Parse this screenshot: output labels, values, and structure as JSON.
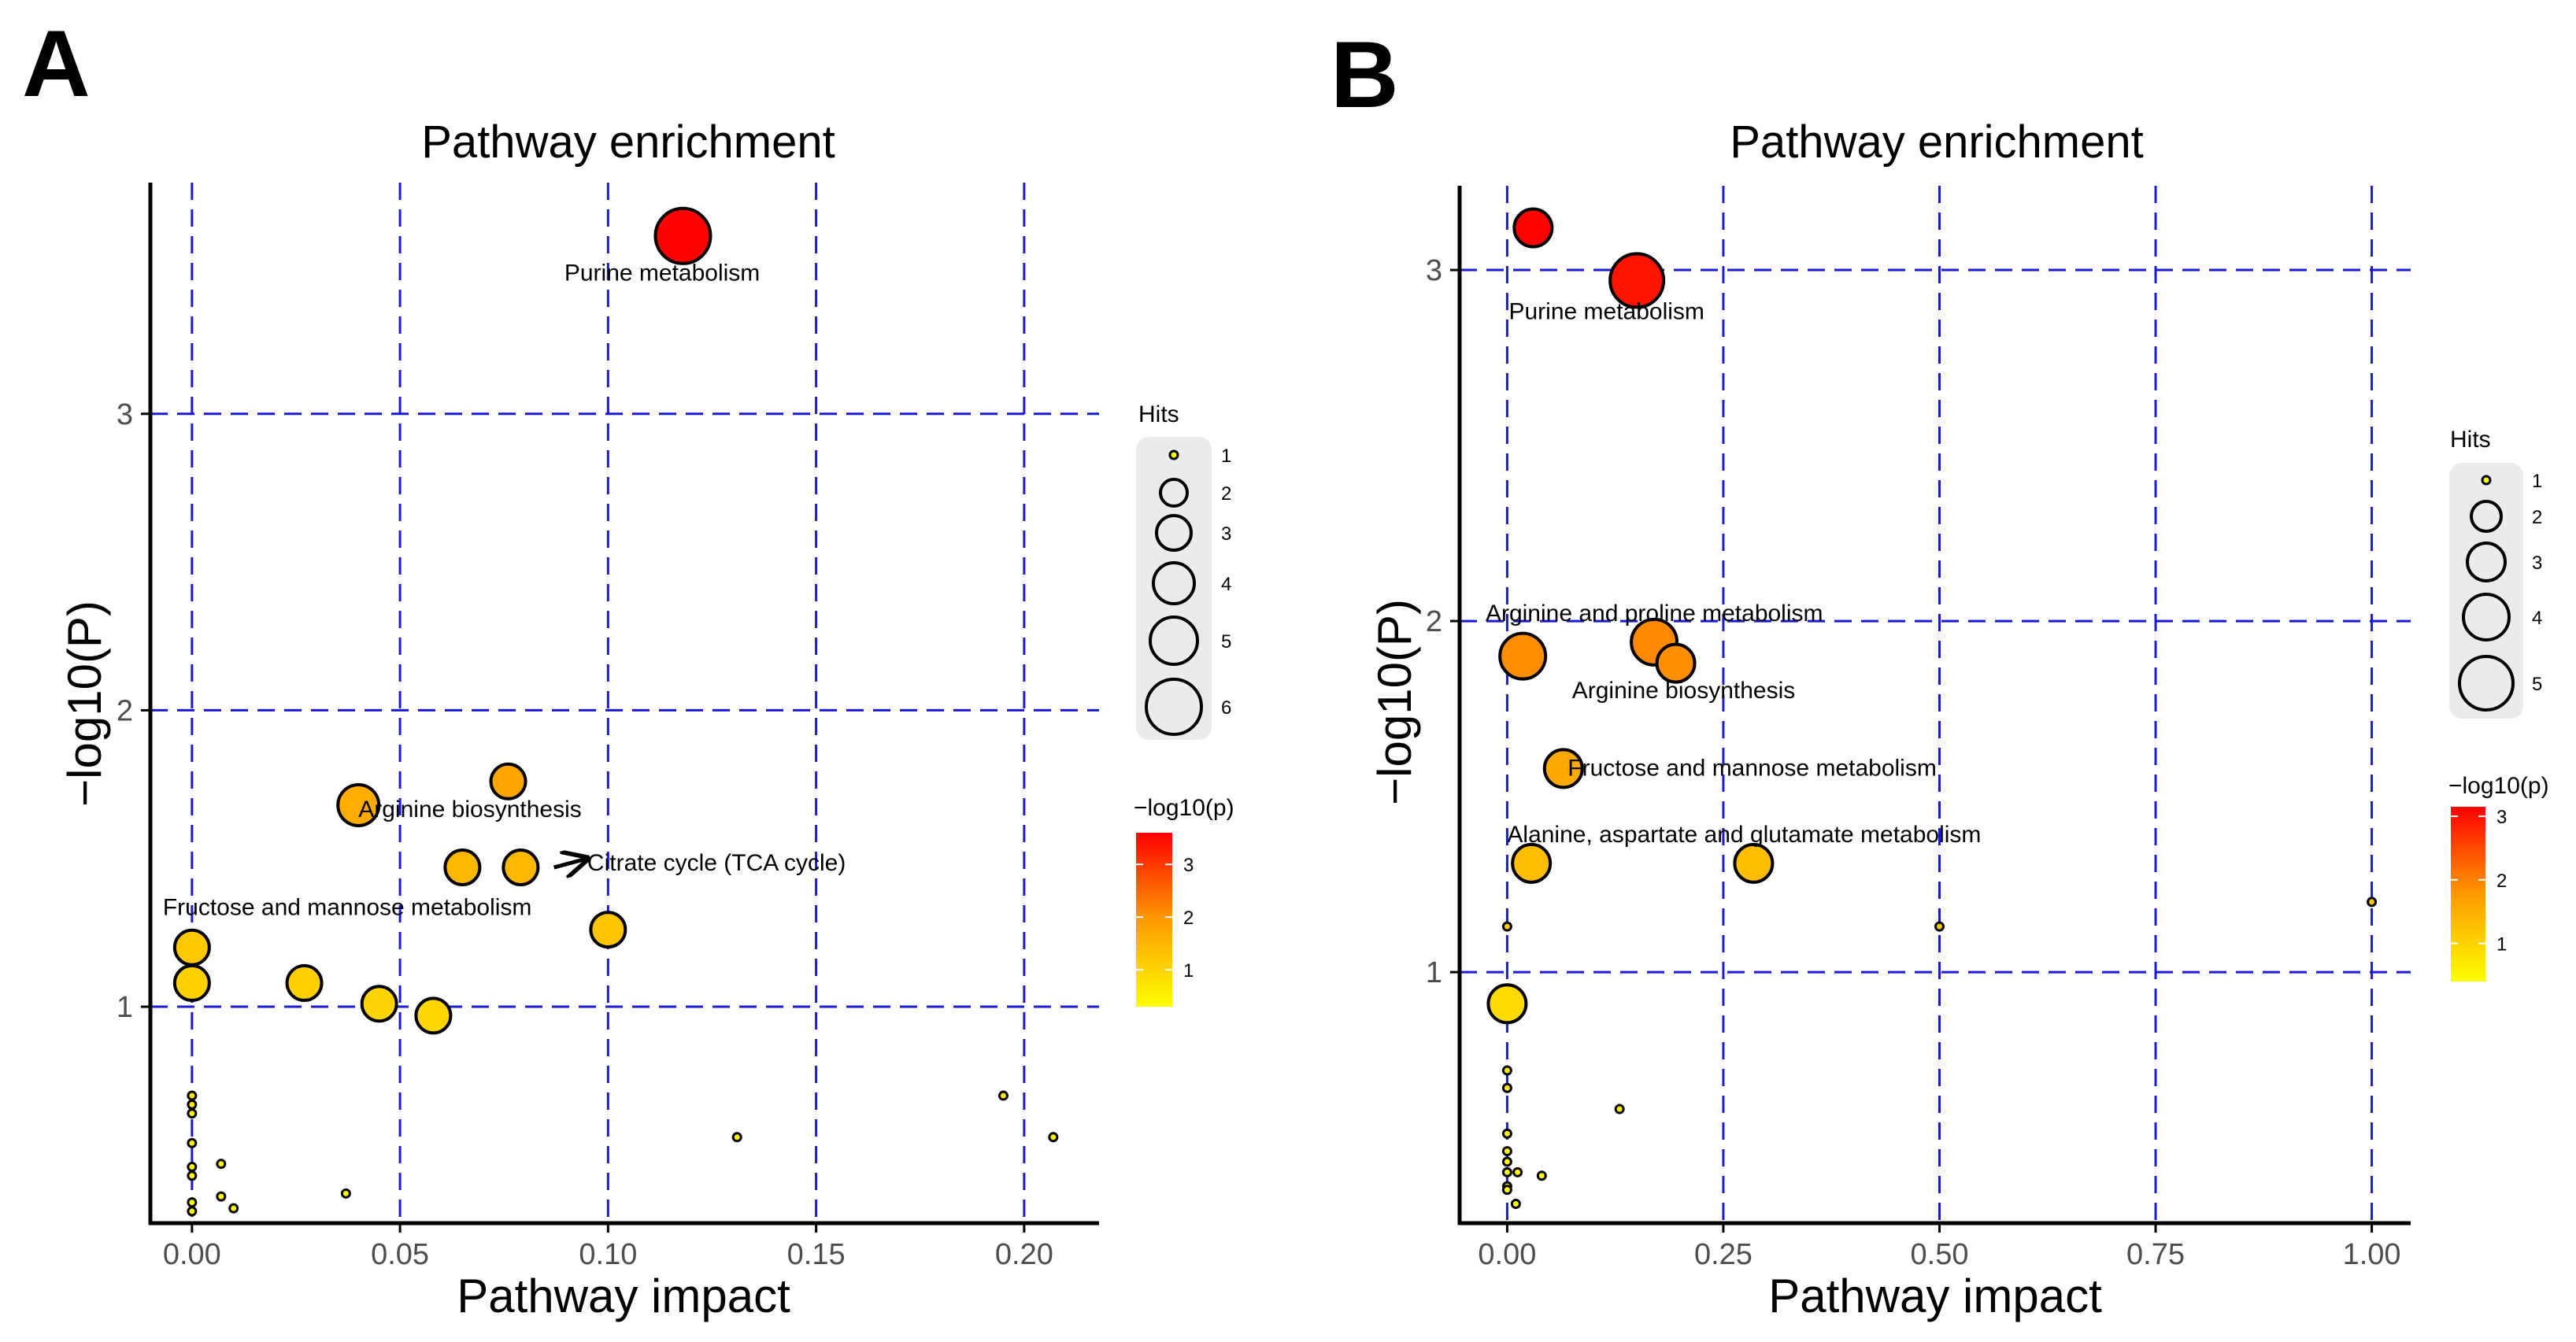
{
  "chart_data": [
    {
      "panel_label": "A",
      "type": "scatter",
      "title": "Pathway enrichment",
      "xlabel": "Pathway impact",
      "ylabel": "−log10(P)",
      "xlim": [
        -0.01,
        0.218
      ],
      "ylim": [
        0.27,
        3.78
      ],
      "xticks": [
        0.0,
        0.05,
        0.1,
        0.15,
        0.2
      ],
      "xtick_labels": [
        "0.00",
        "0.05",
        "0.10",
        "0.15",
        "0.20"
      ],
      "yticks": [
        1,
        2,
        3
      ],
      "ytick_labels": [
        "1",
        "2",
        "3"
      ],
      "grid": "dashed blue at major ticks",
      "size_legend": {
        "title": "Hits",
        "values": [
          1,
          2,
          3,
          4,
          5,
          6
        ],
        "labels": [
          "1",
          "2",
          "3",
          "4",
          "5",
          "6"
        ]
      },
      "color_legend": {
        "title": "−log10(p)",
        "min": 0.3,
        "max": 3.6,
        "ticks": [
          1,
          2,
          3
        ],
        "tick_labels": [
          "1",
          "2",
          "3"
        ]
      },
      "points": [
        {
          "x": 0.118,
          "y": 3.6,
          "hits": 6
        },
        {
          "x": 0.04,
          "y": 1.68,
          "hits": 4
        },
        {
          "x": 0.076,
          "y": 1.76,
          "hits": 3
        },
        {
          "x": 0.065,
          "y": 1.47,
          "hits": 3
        },
        {
          "x": 0.079,
          "y": 1.47,
          "hits": 3
        },
        {
          "x": 0.1,
          "y": 1.26,
          "hits": 3
        },
        {
          "x": 0.0,
          "y": 1.2,
          "hits": 3
        },
        {
          "x": 0.0,
          "y": 1.08,
          "hits": 3
        },
        {
          "x": 0.027,
          "y": 1.08,
          "hits": 3
        },
        {
          "x": 0.045,
          "y": 1.01,
          "hits": 3
        },
        {
          "x": 0.058,
          "y": 0.97,
          "hits": 3
        },
        {
          "x": 0.0,
          "y": 0.7,
          "hits": 1
        },
        {
          "x": 0.0,
          "y": 0.67,
          "hits": 1
        },
        {
          "x": 0.0,
          "y": 0.64,
          "hits": 1
        },
        {
          "x": 0.0,
          "y": 0.54,
          "hits": 1
        },
        {
          "x": 0.0,
          "y": 0.46,
          "hits": 1
        },
        {
          "x": 0.0,
          "y": 0.43,
          "hits": 1
        },
        {
          "x": 0.0,
          "y": 0.34,
          "hits": 1
        },
        {
          "x": 0.0,
          "y": 0.31,
          "hits": 1
        },
        {
          "x": 0.007,
          "y": 0.47,
          "hits": 1
        },
        {
          "x": 0.007,
          "y": 0.36,
          "hits": 1
        },
        {
          "x": 0.01,
          "y": 0.32,
          "hits": 1
        },
        {
          "x": 0.037,
          "y": 0.37,
          "hits": 1
        },
        {
          "x": 0.131,
          "y": 0.56,
          "hits": 1
        },
        {
          "x": 0.195,
          "y": 0.7,
          "hits": 1
        },
        {
          "x": 0.207,
          "y": 0.56,
          "hits": 1
        }
      ],
      "annotations": [
        {
          "text": "Purine metabolism",
          "x": 0.113,
          "y": 3.45,
          "anchor": "middle"
        },
        {
          "text": "Arginine biosynthesis",
          "x": 0.04,
          "y": 1.64,
          "anchor": "start"
        },
        {
          "text": "Citrate cycle (TCA cycle)",
          "x": 0.095,
          "y": 1.46,
          "anchor": "start"
        },
        {
          "text": "Fructose and mannose metabolism",
          "x": -0.007,
          "y": 1.31,
          "anchor": "start"
        }
      ],
      "arrow": {
        "from": [
          0.087,
          1.47
        ],
        "to": [
          0.095,
          1.5
        ]
      }
    },
    {
      "panel_label": "B",
      "type": "scatter",
      "title": "Pathway enrichment",
      "xlabel": "Pathway impact",
      "ylabel": "−log10(P)",
      "xlim": [
        -0.055,
        1.045
      ],
      "ylim": [
        0.285,
        3.24
      ],
      "xticks": [
        0.0,
        0.25,
        0.5,
        0.75,
        1.0
      ],
      "xtick_labels": [
        "0.00",
        "0.25",
        "0.50",
        "0.75",
        "1.00"
      ],
      "yticks": [
        1,
        2,
        3
      ],
      "ytick_labels": [
        "1",
        "2",
        "3"
      ],
      "grid": "dashed blue at major ticks",
      "size_legend": {
        "title": "Hits",
        "values": [
          1,
          2,
          3,
          4,
          5
        ],
        "labels": [
          "1",
          "2",
          "3",
          "4",
          "5"
        ]
      },
      "color_legend": {
        "title": "−log10(p)",
        "min": 0.4,
        "max": 3.15,
        "ticks": [
          1,
          2,
          3
        ],
        "tick_labels": [
          "1",
          "2",
          "3"
        ]
      },
      "points": [
        {
          "x": 0.03,
          "y": 3.12,
          "hits": 3
        },
        {
          "x": 0.15,
          "y": 2.97,
          "hits": 5
        },
        {
          "x": 0.018,
          "y": 1.9,
          "hits": 4
        },
        {
          "x": 0.17,
          "y": 1.94,
          "hits": 4
        },
        {
          "x": 0.195,
          "y": 1.88,
          "hits": 3
        },
        {
          "x": 0.065,
          "y": 1.58,
          "hits": 3
        },
        {
          "x": 0.028,
          "y": 1.31,
          "hits": 3
        },
        {
          "x": 0.285,
          "y": 1.31,
          "hits": 3
        },
        {
          "x": 0.0,
          "y": 0.91,
          "hits": 3
        },
        {
          "x": 0.0,
          "y": 1.13,
          "hits": 1
        },
        {
          "x": 0.5,
          "y": 1.13,
          "hits": 1
        },
        {
          "x": 1.0,
          "y": 1.2,
          "hits": 1
        },
        {
          "x": 0.0,
          "y": 0.72,
          "hits": 1
        },
        {
          "x": 0.0,
          "y": 0.67,
          "hits": 1
        },
        {
          "x": 0.0,
          "y": 0.54,
          "hits": 1
        },
        {
          "x": 0.0,
          "y": 0.49,
          "hits": 1
        },
        {
          "x": 0.0,
          "y": 0.46,
          "hits": 1
        },
        {
          "x": 0.0,
          "y": 0.43,
          "hits": 1
        },
        {
          "x": 0.0,
          "y": 0.39,
          "hits": 1
        },
        {
          "x": 0.0,
          "y": 0.38,
          "hits": 1
        },
        {
          "x": 0.012,
          "y": 0.43,
          "hits": 1
        },
        {
          "x": 0.04,
          "y": 0.42,
          "hits": 1
        },
        {
          "x": 0.13,
          "y": 0.61,
          "hits": 1
        },
        {
          "x": 0.01,
          "y": 0.34,
          "hits": 1
        }
      ],
      "annotations": [
        {
          "text": "Purine metabolism",
          "x": 0.115,
          "y": 2.86,
          "anchor": "middle"
        },
        {
          "text": "Arginine and proline metabolism",
          "x": -0.025,
          "y": 2.0,
          "anchor": "start"
        },
        {
          "text": "Arginine biosynthesis",
          "x": 0.075,
          "y": 1.78,
          "anchor": "start"
        },
        {
          "text": "Fructose and mannose metabolism",
          "x": 0.07,
          "y": 1.56,
          "anchor": "start"
        },
        {
          "text": "Alanine, aspartate and glutamate metabolism",
          "x": 0.0,
          "y": 1.37,
          "anchor": "start"
        }
      ]
    }
  ]
}
